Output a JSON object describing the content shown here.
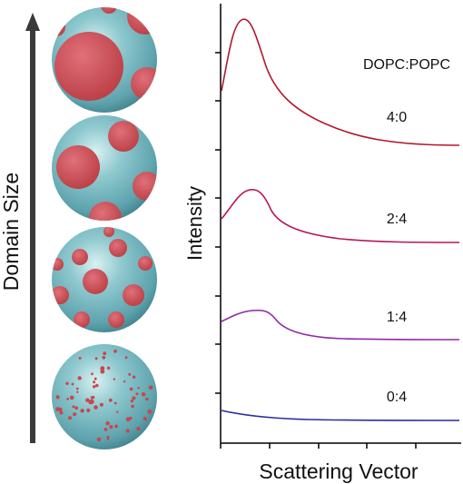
{
  "left_axis_label": "Domain Size",
  "x_axis_label": "Scattering Vector",
  "y_axis_label": "Intensity",
  "legend_title": "DOPC:POPC",
  "colors": {
    "sphere_base": "#6fb3bd",
    "domain": "#c9464c",
    "axis": "#000000"
  },
  "chart_data": {
    "type": "line",
    "xlabel": "Scattering Vector",
    "ylabel": "Intensity",
    "title": "",
    "legend_title": "DOPC:POPC",
    "series": [
      {
        "name": "4:0",
        "color": "#b2182b"
      },
      {
        "name": "2:4",
        "color": "#b5185a"
      },
      {
        "name": "1:4",
        "color": "#8e2aa8"
      },
      {
        "name": "0:4",
        "color": "#2c2c9e"
      }
    ]
  }
}
